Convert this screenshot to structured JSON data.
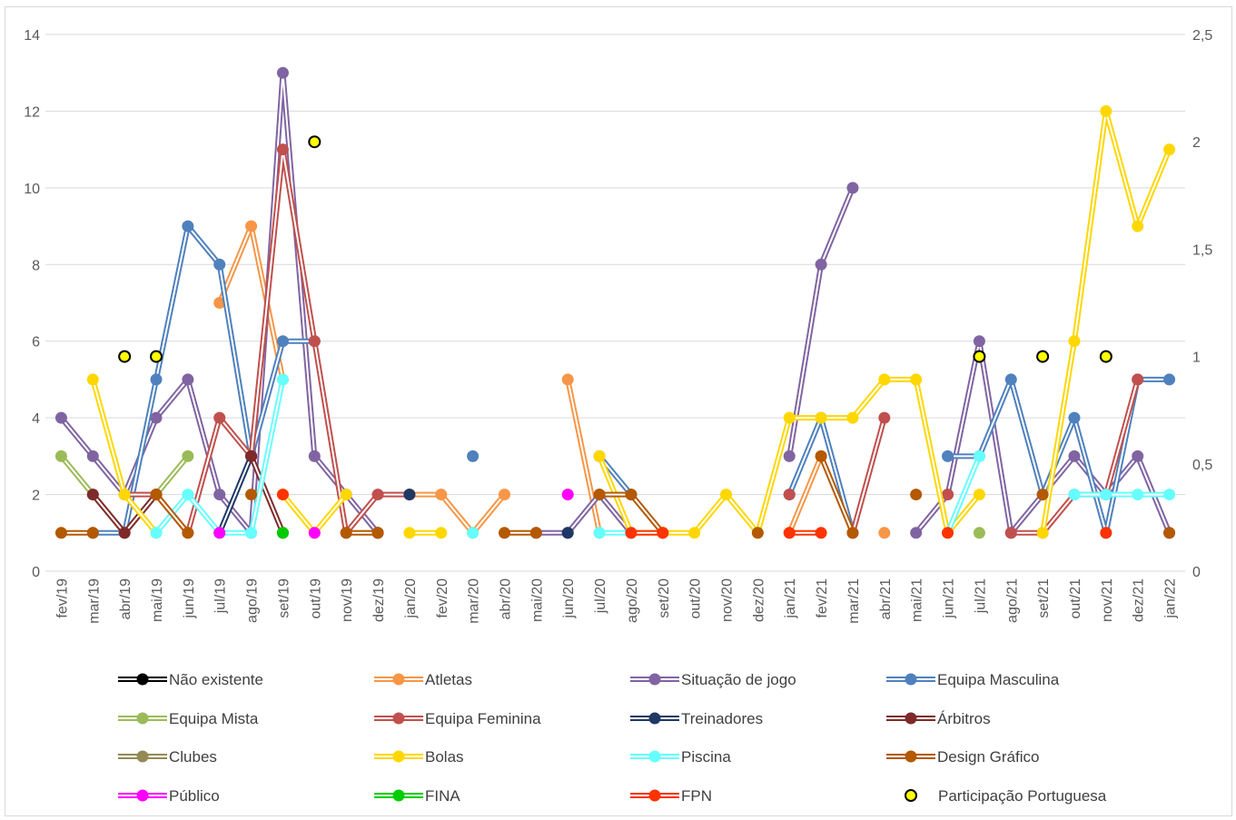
{
  "chart_data": {
    "type": "line",
    "title": "",
    "xlabel": "",
    "ylabel": "",
    "categories": [
      "fev/19",
      "mar/19",
      "abr/19",
      "mai/19",
      "jun/19",
      "jul/19",
      "ago/19",
      "set/19",
      "out/19",
      "nov/19",
      "dez/19",
      "jan/20",
      "fev/20",
      "mar/20",
      "abr/20",
      "mai/20",
      "jun/20",
      "jul/20",
      "ago/20",
      "set/20",
      "out/20",
      "nov/20",
      "dez/20",
      "jan/21",
      "fev/21",
      "mar/21",
      "abr/21",
      "mai/21",
      "jun/21",
      "jul/21",
      "ago/21",
      "set/21",
      "out/21",
      "nov/21",
      "dez/21",
      "jan/22"
    ],
    "ylim": [
      0,
      14
    ],
    "y_ticks": [
      "0",
      "2",
      "4",
      "6",
      "8",
      "10",
      "12",
      "14"
    ],
    "y2lim": [
      0,
      2.5
    ],
    "y2_ticks": [
      "0",
      "0,5",
      "1",
      "1,5",
      "2",
      "2,5"
    ],
    "grid": true,
    "legend_position": "bottom",
    "series": [
      {
        "name": "Não existente",
        "color": "#000000",
        "axis": "left",
        "style": "line",
        "values": [
          null,
          null,
          null,
          null,
          null,
          null,
          null,
          null,
          null,
          null,
          null,
          null,
          null,
          null,
          null,
          null,
          null,
          null,
          null,
          null,
          null,
          null,
          null,
          null,
          null,
          null,
          null,
          null,
          null,
          null,
          null,
          null,
          null,
          null,
          null,
          null
        ]
      },
      {
        "name": "Atletas",
        "color": "#f79646",
        "axis": "left",
        "style": "line",
        "values": [
          null,
          null,
          null,
          null,
          null,
          7,
          9,
          5,
          null,
          null,
          null,
          2,
          2,
          1,
          2,
          null,
          5,
          1,
          null,
          null,
          null,
          null,
          null,
          1,
          3,
          null,
          1,
          null,
          null,
          null,
          null,
          null,
          null,
          null,
          null,
          null
        ]
      },
      {
        "name": "Situação de jogo",
        "color": "#8064a2",
        "axis": "left",
        "style": "line",
        "values": [
          4,
          3,
          2,
          4,
          5,
          2,
          1,
          13,
          3,
          2,
          1,
          null,
          null,
          null,
          null,
          1,
          1,
          2,
          1,
          null,
          null,
          null,
          null,
          3,
          8,
          10,
          null,
          1,
          2,
          6,
          1,
          2,
          3,
          2,
          3,
          1
        ]
      },
      {
        "name": "Equipa Masculina",
        "color": "#4f81bd",
        "axis": "left",
        "style": "line",
        "values": [
          null,
          1,
          1,
          5,
          9,
          8,
          3,
          6,
          6,
          null,
          null,
          null,
          null,
          3,
          null,
          null,
          null,
          3,
          2,
          null,
          null,
          null,
          null,
          2,
          4,
          1,
          null,
          null,
          3,
          3,
          5,
          2,
          4,
          1,
          5,
          5
        ]
      },
      {
        "name": "Equipa Mista",
        "color": "#9bbb59",
        "axis": "left",
        "style": "line",
        "values": [
          3,
          2,
          1,
          2,
          3,
          null,
          null,
          null,
          null,
          null,
          null,
          null,
          null,
          null,
          null,
          null,
          null,
          null,
          null,
          null,
          null,
          null,
          null,
          null,
          null,
          null,
          null,
          null,
          null,
          1,
          null,
          null,
          null,
          null,
          null,
          null
        ]
      },
      {
        "name": "Equipa Feminina",
        "color": "#c0504d",
        "axis": "left",
        "style": "line",
        "values": [
          null,
          null,
          2,
          2,
          1,
          4,
          3,
          11,
          6,
          1,
          2,
          2,
          null,
          null,
          null,
          null,
          null,
          null,
          null,
          null,
          null,
          null,
          null,
          2,
          null,
          1,
          4,
          null,
          2,
          null,
          1,
          1,
          2,
          2,
          5,
          null
        ]
      },
      {
        "name": "Treinadores",
        "color": "#1f3864",
        "axis": "left",
        "style": "line",
        "values": [
          null,
          null,
          null,
          null,
          null,
          1,
          3,
          null,
          null,
          null,
          null,
          2,
          null,
          null,
          null,
          null,
          1,
          null,
          null,
          null,
          null,
          null,
          null,
          null,
          null,
          null,
          null,
          null,
          null,
          null,
          null,
          null,
          null,
          null,
          null,
          null
        ]
      },
      {
        "name": "Árbitros",
        "color": "#7f2a2a",
        "axis": "left",
        "style": "line",
        "values": [
          null,
          2,
          1,
          2,
          null,
          null,
          3,
          1,
          null,
          null,
          1,
          null,
          null,
          null,
          null,
          null,
          null,
          null,
          null,
          null,
          null,
          null,
          null,
          null,
          null,
          null,
          null,
          null,
          null,
          null,
          null,
          null,
          null,
          null,
          null,
          null
        ]
      },
      {
        "name": "Clubes",
        "color": "#948a54",
        "axis": "left",
        "style": "line",
        "values": [
          null,
          null,
          null,
          null,
          null,
          null,
          null,
          null,
          null,
          null,
          null,
          null,
          null,
          null,
          null,
          null,
          null,
          null,
          null,
          null,
          null,
          null,
          null,
          null,
          null,
          null,
          null,
          null,
          null,
          null,
          null,
          null,
          null,
          null,
          null,
          null
        ]
      },
      {
        "name": "Bolas",
        "color": "#ffd700",
        "axis": "left",
        "style": "line",
        "values": [
          null,
          5,
          2,
          1,
          null,
          null,
          null,
          2,
          1,
          2,
          null,
          1,
          1,
          null,
          null,
          null,
          null,
          3,
          1,
          1,
          1,
          2,
          1,
          4,
          4,
          4,
          5,
          5,
          1,
          2,
          null,
          1,
          6,
          12,
          9,
          11
        ]
      },
      {
        "name": "Piscina",
        "color": "#66ffff",
        "axis": "left",
        "style": "line",
        "values": [
          null,
          null,
          null,
          1,
          2,
          1,
          1,
          5,
          null,
          null,
          null,
          null,
          null,
          1,
          null,
          null,
          null,
          1,
          1,
          null,
          null,
          null,
          null,
          null,
          null,
          null,
          null,
          null,
          1,
          3,
          null,
          null,
          2,
          2,
          2,
          2
        ]
      },
      {
        "name": "Design Gráfico",
        "color": "#b35900",
        "axis": "left",
        "style": "line",
        "values": [
          1,
          1,
          null,
          2,
          1,
          null,
          2,
          null,
          null,
          1,
          1,
          null,
          null,
          null,
          1,
          1,
          null,
          2,
          2,
          1,
          null,
          null,
          1,
          null,
          3,
          1,
          null,
          2,
          null,
          null,
          null,
          2,
          null,
          null,
          null,
          1
        ]
      },
      {
        "name": "Público",
        "color": "#ff00ff",
        "axis": "left",
        "style": "line",
        "values": [
          null,
          null,
          null,
          null,
          null,
          1,
          null,
          null,
          1,
          null,
          null,
          null,
          null,
          null,
          null,
          null,
          2,
          null,
          null,
          null,
          null,
          null,
          null,
          null,
          null,
          null,
          null,
          null,
          null,
          null,
          null,
          null,
          null,
          null,
          null,
          null
        ]
      },
      {
        "name": "FINA",
        "color": "#00cc00",
        "axis": "left",
        "style": "line",
        "values": [
          null,
          null,
          null,
          null,
          null,
          null,
          null,
          1,
          null,
          null,
          null,
          null,
          null,
          null,
          null,
          null,
          null,
          null,
          null,
          null,
          null,
          null,
          null,
          null,
          null,
          null,
          null,
          null,
          null,
          null,
          null,
          null,
          null,
          null,
          null,
          null
        ]
      },
      {
        "name": "FPN",
        "color": "#ff3300",
        "axis": "left",
        "style": "line",
        "values": [
          null,
          null,
          null,
          null,
          null,
          null,
          null,
          2,
          null,
          null,
          null,
          null,
          null,
          null,
          null,
          null,
          null,
          null,
          1,
          1,
          null,
          null,
          null,
          1,
          1,
          null,
          null,
          null,
          1,
          null,
          null,
          null,
          null,
          1,
          null,
          null
        ]
      },
      {
        "name": "Participação Portuguesa",
        "color": "#ffff00",
        "axis": "right",
        "style": "marker",
        "values": [
          null,
          null,
          1,
          1,
          null,
          null,
          null,
          null,
          2,
          null,
          null,
          null,
          null,
          null,
          null,
          null,
          null,
          null,
          null,
          null,
          null,
          null,
          null,
          null,
          null,
          null,
          null,
          null,
          null,
          1,
          null,
          1,
          null,
          1,
          null,
          null
        ]
      }
    ]
  }
}
